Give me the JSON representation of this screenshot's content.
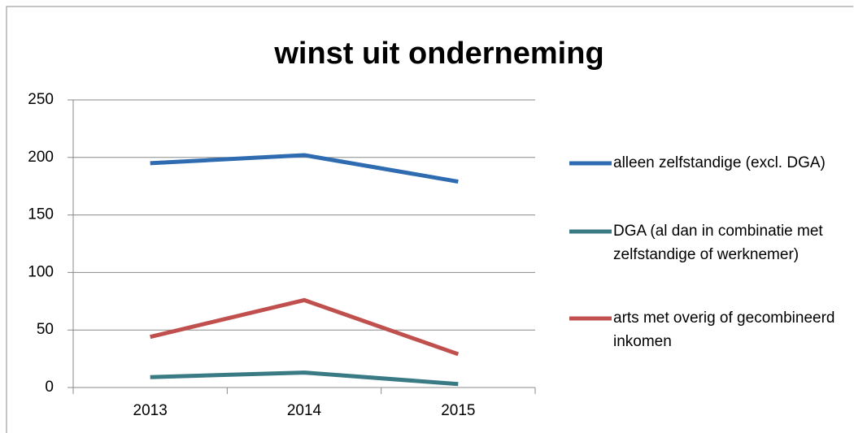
{
  "chart_data": {
    "type": "line",
    "title": "winst uit onderneming",
    "categories": [
      "2013",
      "2014",
      "2015"
    ],
    "series": [
      {
        "name": "alleen zelfstandige (excl. DGA)",
        "color": "#2e6bb0",
        "values": [
          195,
          202,
          179
        ]
      },
      {
        "name": "DGA (al dan in combinatie met zelfstandige of werknemer)",
        "color": "#3a7a84",
        "values": [
          9,
          13,
          3
        ]
      },
      {
        "name": "arts met overig of gecombineerd inkomen",
        "color": "#c0504d",
        "values": [
          44,
          76,
          29
        ]
      }
    ],
    "ylim": [
      0,
      250
    ],
    "yticks": [
      0,
      50,
      100,
      150,
      200,
      250
    ],
    "grid": true,
    "legend": "right"
  }
}
